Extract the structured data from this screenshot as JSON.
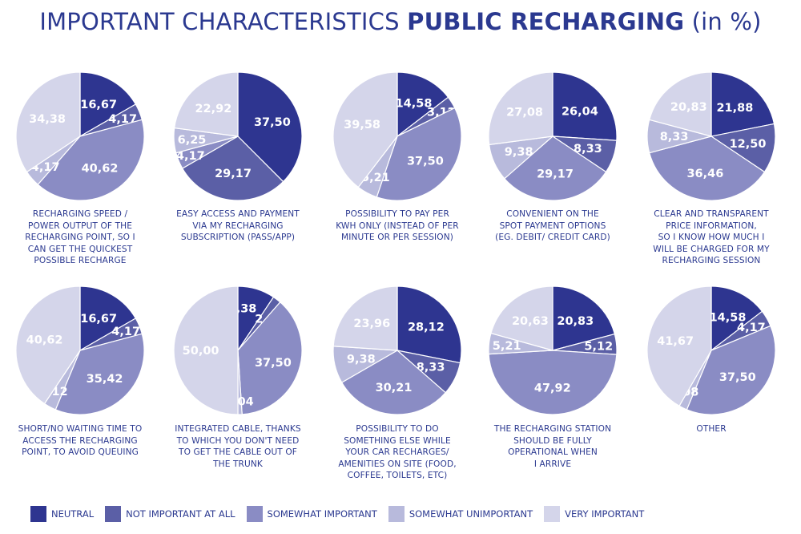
{
  "title": {
    "part1": "IMPORTANT CHARACTERISTICS ",
    "part2": "PUBLIC RECHARGING",
    "part3": " (in %)"
  },
  "colors": {
    "neutral": "#2e3590",
    "not_important": "#5b5fa6",
    "somewhat_important": "#8a8cc4",
    "somewhat_unimportant": "#b8badc",
    "very_important": "#d4d5ea"
  },
  "chart_data": {
    "type": "pie",
    "title": "IMPORTANT CHARACTERISTICS PUBLIC RECHARGING (in %)",
    "legend_position": "bottom",
    "legend": [
      "NEUTRAL",
      "NOT IMPORTANT AT ALL",
      "SOMEWHAT IMPORTANT",
      "SOMEWHAT UNIMPORTANT",
      "VERY IMPORTANT"
    ],
    "pies": [
      {
        "caption": [
          "RECHARGING SPEED /",
          "POWER OUTPUT OF THE",
          "RECHARGING POINT, SO I",
          "CAN GET THE QUICKEST",
          "POSSIBLE RECHARGE"
        ],
        "values": [
          16.67,
          4.17,
          40.62,
          4.17,
          34.38
        ],
        "labels": [
          "16,67",
          "4,17",
          "40,62",
          "4,17",
          "34,38"
        ]
      },
      {
        "caption": [
          "EASY ACCESS AND PAYMENT",
          "VIA MY RECHARGING",
          "SUBSCRIPTION (PASS/APP)"
        ],
        "values": [
          37.5,
          29.17,
          4.17,
          6.25,
          22.92
        ],
        "labels": [
          "37,50",
          "29,17",
          "4,17",
          "6,25",
          "22,92"
        ]
      },
      {
        "caption": [
          "POSSIBILITY TO PAY PER",
          "KWH ONLY (INSTEAD OF PER",
          "MINUTE OR PER SESSION)"
        ],
        "values": [
          14.58,
          3.12,
          37.5,
          5.21,
          39.58
        ],
        "labels": [
          "14,58",
          "3,12",
          "37,50",
          "5,21",
          "39,58"
        ]
      },
      {
        "caption": [
          "CONVENIENT ON THE",
          "SPOT PAYMENT OPTIONS",
          "(EG. DEBIT/ CREDIT CARD)"
        ],
        "values": [
          26.04,
          8.33,
          29.17,
          9.38,
          27.08
        ],
        "labels": [
          "26,04",
          "8,33",
          "29,17",
          "9,38",
          "27,08"
        ]
      },
      {
        "caption": [
          "CLEAR AND TRANSPARENT",
          "PRICE INFORMATION,",
          "SO I KNOW HOW MUCH I",
          "WILL BE CHARGED FOR MY",
          "RECHARGING SESSION"
        ],
        "values": [
          21.88,
          12.5,
          36.46,
          8.33,
          20.83
        ],
        "labels": [
          "21,88",
          "12,50",
          "36,46",
          "8,33",
          "20,83"
        ]
      },
      {
        "caption": [
          "SHORT/NO WAITING TIME TO",
          "ACCESS THE RECHARGING",
          "POINT, TO AVOID QUEUING"
        ],
        "values": [
          16.67,
          4.17,
          35.42,
          3.12,
          40.62
        ],
        "labels": [
          "16,67",
          "4,17",
          "35,42",
          "3,12",
          "40,62"
        ]
      },
      {
        "caption": [
          "INTEGRATED CABLE, THANKS",
          "TO WHICH YOU DON'T NEED",
          "TO GET THE CABLE OUT OF",
          "THE TRUNK"
        ],
        "values": [
          9.38,
          2.08,
          37.5,
          1.04,
          50.0
        ],
        "labels": [
          "9,38",
          "2,08",
          "37,50",
          "1,04",
          "50,00"
        ]
      },
      {
        "caption": [
          "POSSIBILITY TO DO",
          "SOMETHING ELSE WHILE",
          "YOUR CAR RECHARGES/",
          "AMENITIES ON SITE (FOOD,",
          "COFFEE, TOILETS, ETC)"
        ],
        "values": [
          28.12,
          8.33,
          30.21,
          9.38,
          23.96
        ],
        "labels": [
          "28,12",
          "8,33",
          "30,21",
          "9,38",
          "23,96"
        ]
      },
      {
        "caption": [
          "THE RECHARGING STATION",
          "SHOULD BE FULLY",
          "OPERATIONAL WHEN",
          "I ARRIVE"
        ],
        "values": [
          20.83,
          5.12,
          47.92,
          5.21,
          20.63
        ],
        "labels": [
          "20,83",
          "5,12",
          "47,92",
          "5,21",
          "20,63"
        ]
      },
      {
        "caption": [
          "OTHER"
        ],
        "values": [
          14.58,
          4.17,
          37.5,
          2.08,
          41.67
        ],
        "labels": [
          "14,58",
          "4,17",
          "37,50",
          "2,08",
          "41,67"
        ]
      }
    ]
  }
}
